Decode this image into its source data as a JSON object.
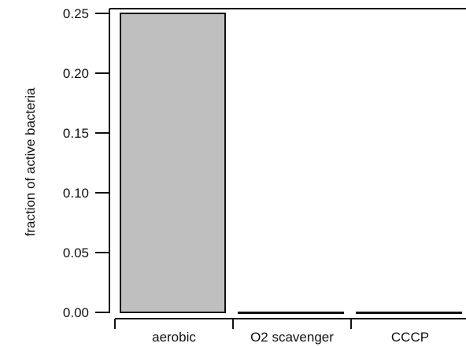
{
  "chart_data": {
    "type": "bar",
    "categories": [
      "aerobic",
      "O2 scavenger",
      "CCCP"
    ],
    "values": [
      0.25,
      0.0,
      0.0
    ],
    "title": "",
    "xlabel": "",
    "ylabel": "fraction of active bacteria",
    "ylim": [
      0,
      0.25
    ],
    "yticks": [
      "0.00",
      "0.05",
      "0.10",
      "0.15",
      "0.20",
      "0.25"
    ],
    "bar_color": "#bfbfbf",
    "edge_color": "#111111",
    "grid": false,
    "legend": "none"
  }
}
